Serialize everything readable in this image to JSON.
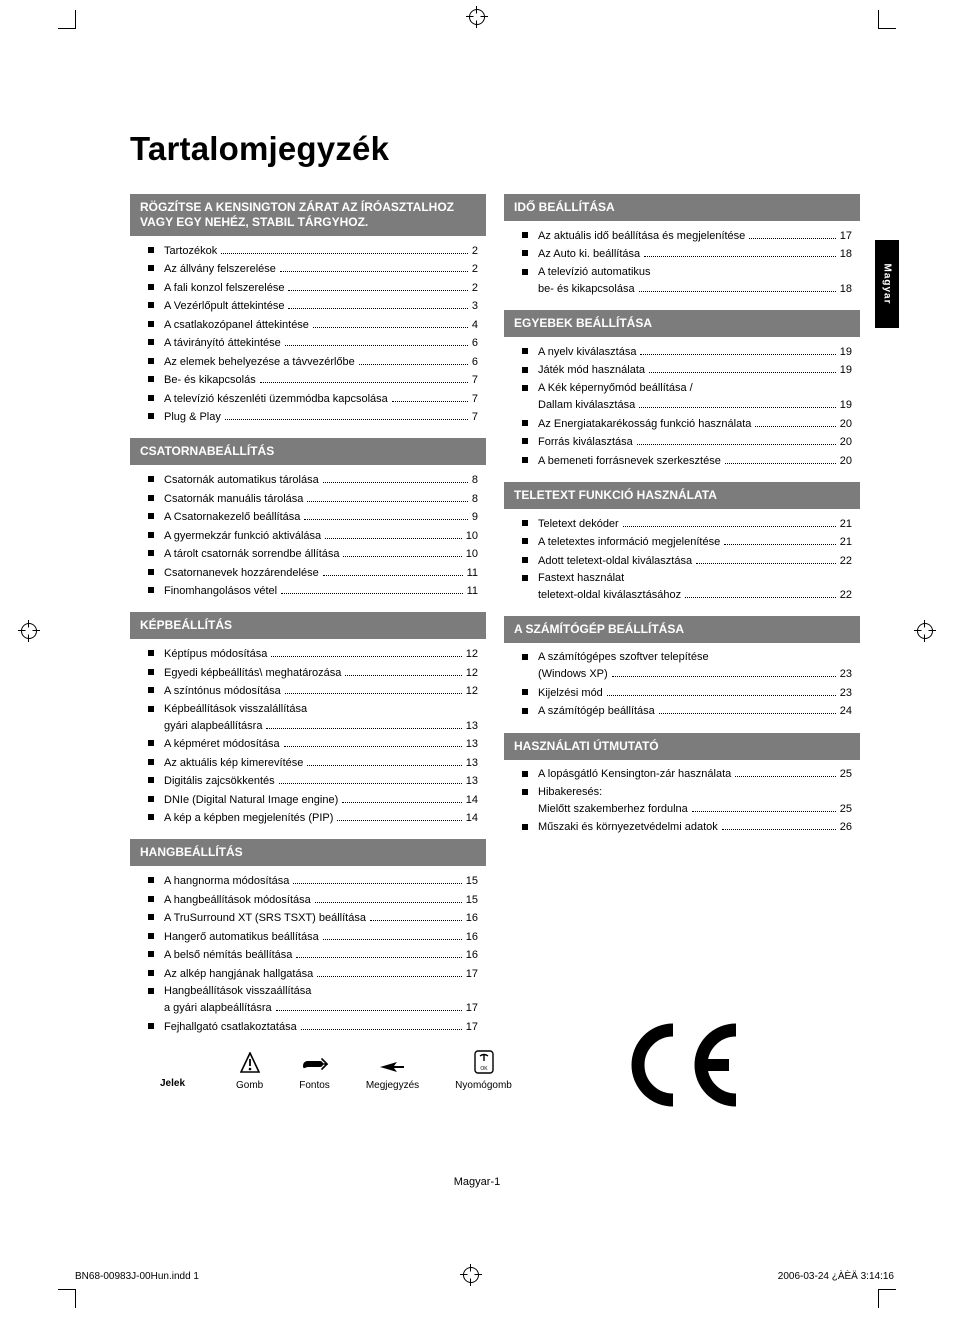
{
  "language_tab": "Magyar",
  "page_title": "Tartalomjegyzék",
  "footer_center": "Magyar-1",
  "print_footer_left": "BN68-00983J-00Hun.indd   1",
  "print_footer_right": "2006-03-24   ¿ÀÈÄ 3:14:16",
  "icons_row": {
    "legend_label": "Jelek",
    "captions": [
      "Gomb",
      "Fontos",
      "Megjegyzés",
      "Nyomógomb"
    ]
  },
  "colors": {
    "section_head_bg": "#7c7c7c",
    "section_head_fg": "#ffffff",
    "text": "#000000",
    "bullet": "#000000",
    "side_tab_bg": "#000000",
    "side_tab_fg": "#ffffff"
  },
  "left_column": [
    {
      "heading": "RÖGZÍTSE A KENSINGTON ZÁRAT AZ ÍRÓASZTALHOZ VAGY EGY NEHÉZ, STABIL TÁRGYHOZ.",
      "items": [
        {
          "label": "Tartozékok",
          "page": "2"
        },
        {
          "label": "Az állvány felszerelése",
          "page": "2"
        },
        {
          "label": "A fali konzol felszerelése",
          "page": "2"
        },
        {
          "label": "A Vezérlőpult áttekintése",
          "page": "3"
        },
        {
          "label": "A csatlakozópanel áttekintése",
          "page": "4"
        },
        {
          "label": "A távirányító áttekintése",
          "page": "6"
        },
        {
          "label": "Az elemek behelyezése a távvezérlőbe",
          "page": "6"
        },
        {
          "label": "Be- és kikapcsolás",
          "page": "7"
        },
        {
          "label": "A televízió készenléti üzemmódba kapcsolása",
          "page": "7"
        },
        {
          "label": "Plug & Play",
          "page": "7"
        }
      ]
    },
    {
      "heading": "CSATORNABEÁLLÍTÁS",
      "items": [
        {
          "label": "Csatornák automatikus tárolása",
          "page": "8"
        },
        {
          "label": "Csatornák manuális tárolása",
          "page": "8"
        },
        {
          "label": "A Csatornakezelő beállítása",
          "page": "9"
        },
        {
          "label": "A gyermekzár funkció aktiválása",
          "page": "10"
        },
        {
          "label": "A tárolt csatornák sorrendbe állítása",
          "page": "10"
        },
        {
          "label": "Csatornanevek hozzárendelése",
          "page": "11"
        },
        {
          "label": "Finomhangolásos vétel",
          "page": "11"
        }
      ]
    },
    {
      "heading": "KÉPBEÁLLÍTÁS",
      "items": [
        {
          "label": "Képtípus módosítása",
          "page": "12"
        },
        {
          "label": "Egyedi képbeállítás\\ meghatározása",
          "page": "12"
        },
        {
          "label": "A színtónus módosítása",
          "page": "12"
        },
        {
          "label": "Képbeállítások visszalállítása",
          "cont": "gyári alapbeállításra",
          "page": "13"
        },
        {
          "label": "A képméret módosítása",
          "page": "13"
        },
        {
          "label": "Az aktuális kép kimerevítése",
          "page": "13"
        },
        {
          "label": "Digitális zajcsökkentés",
          "page": "13"
        },
        {
          "label": "DNIe (Digital Natural Image engine)",
          "page": "14"
        },
        {
          "label": "A kép a képben megjelenítés (PIP)",
          "page": "14"
        }
      ]
    },
    {
      "heading": "HANGBEÁLLÍTÁS",
      "items": [
        {
          "label": "A hangnorma módosítása",
          "page": "15"
        },
        {
          "label": "A hangbeállítások módosítása",
          "page": "15"
        },
        {
          "label": "A TruSurround XT (SRS TSXT) beállítása",
          "page": "16"
        },
        {
          "label": "Hangerő automatikus beállítása",
          "page": "16"
        },
        {
          "label": "A belső némítás beállítása",
          "page": "16"
        },
        {
          "label": "Az alkép hangjának hallgatása",
          "page": "17"
        },
        {
          "label": "Hangbeállítások visszaállítása",
          "cont": "a gyári alapbeállításra",
          "page": "17"
        },
        {
          "label": "Fejhallgató csatlakoztatása",
          "page": "17"
        }
      ]
    }
  ],
  "right_column": [
    {
      "heading": "IDŐ BEÁLLÍTÁSA",
      "items": [
        {
          "label": "Az aktuális idő beállítása és megjelenítése",
          "page": "17"
        },
        {
          "label": "Az Auto ki. beállítása",
          "page": "18"
        },
        {
          "label": "A televízió automatikus",
          "cont": "be- és kikapcsolása",
          "page": "18"
        }
      ]
    },
    {
      "heading": "EGYEBEK BEÁLLÍTÁSA",
      "items": [
        {
          "label": "A nyelv kiválasztása",
          "page": "19"
        },
        {
          "label": "Játék mód használata",
          "page": "19"
        },
        {
          "label": "A Kék képernyőmód beállítása /",
          "cont": "Dallam kiválasztása",
          "page": "19"
        },
        {
          "label": "Az Energiatakarékosság funkció használata",
          "page": "20"
        },
        {
          "label": "Forrás kiválasztása",
          "page": "20"
        },
        {
          "label": "A bemeneti forrásnevek szerkesztése",
          "page": "20"
        }
      ]
    },
    {
      "heading": "TELETEXT FUNKCIÓ HASZNÁLATA",
      "items": [
        {
          "label": "Teletext dekóder",
          "page": "21"
        },
        {
          "label": "A teletextes információ megjelenítése",
          "page": "21"
        },
        {
          "label": "Adott teletext-oldal kiválasztása",
          "page": "22"
        },
        {
          "label": "Fastext használat",
          "cont": "teletext-oldal kiválasztásához",
          "page": "22"
        }
      ]
    },
    {
      "heading": "A SZÁMÍTÓGÉP BEÁLLÍTÁSA",
      "items": [
        {
          "label": "A számítógépes szoftver telepítése",
          "cont": "(Windows XP)",
          "page": "23"
        },
        {
          "label": "Kijelzési mód",
          "page": "23"
        },
        {
          "label": "A számítógép beállítása",
          "page": "24"
        }
      ]
    },
    {
      "heading": "HASZNÁLATI ÚTMUTATÓ",
      "items": [
        {
          "label": "A lopásgátló Kensington-zár használata",
          "page": "25"
        },
        {
          "label": "Hibakeresés:",
          "cont": "Mielőtt szakemberhez fordulna",
          "page": "25"
        },
        {
          "label": "Műszaki és környezetvédelmi adatok",
          "page": "26"
        }
      ]
    }
  ]
}
